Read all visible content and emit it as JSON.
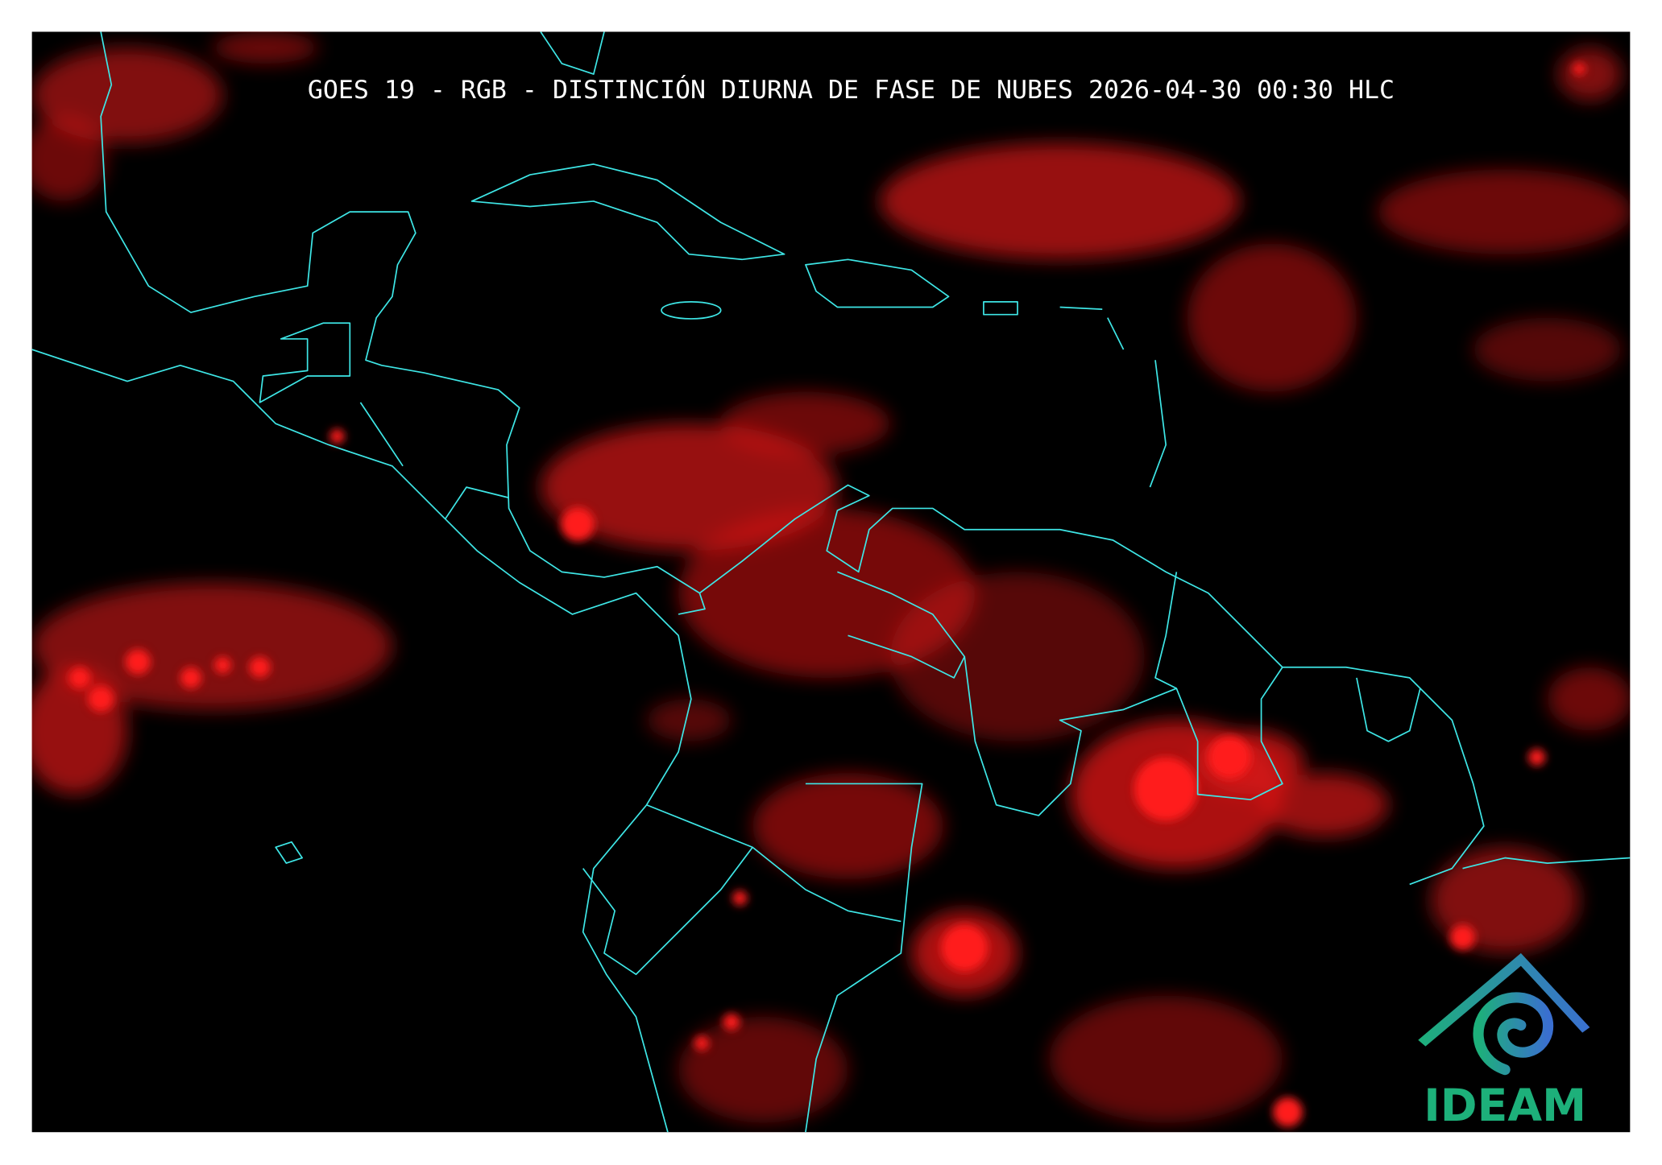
{
  "header": {
    "title": "GOES 19 - RGB - DISTINCIÓN DIURNA DE FASE DE NUBES 2026-04-30 00:30 HLC"
  },
  "logo": {
    "text": "IDEAM"
  }
}
